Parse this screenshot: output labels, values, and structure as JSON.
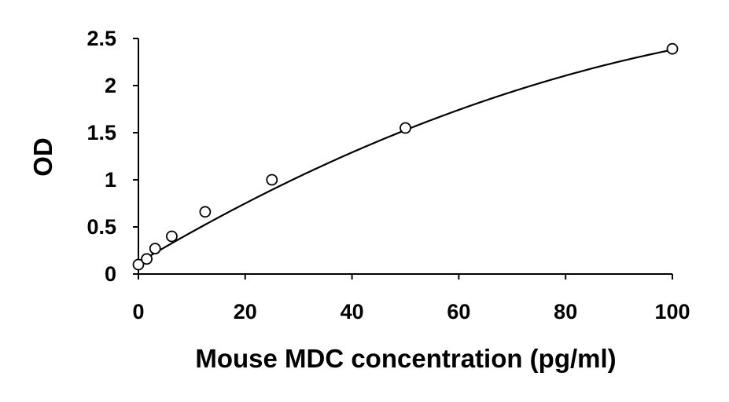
{
  "chart_data": {
    "type": "scatter",
    "title": "",
    "xlabel": "Mouse MDC concentration (pg/ml)",
    "ylabel": "OD",
    "xlim": [
      0,
      100
    ],
    "ylim": [
      0,
      2.5
    ],
    "xticks": [
      "0",
      "20",
      "40",
      "60",
      "80",
      "100"
    ],
    "yticks": [
      "0",
      "0.5",
      "1",
      "1.5",
      "2",
      "2.5"
    ],
    "grid": false,
    "legend": "none",
    "series": [
      {
        "marker": "open-circle",
        "x": [
          0,
          1.56,
          3.13,
          6.25,
          12.5,
          25,
          50,
          100
        ],
        "y": [
          0.1,
          0.16,
          0.27,
          0.4,
          0.66,
          1.0,
          1.55,
          2.39
        ]
      }
    ],
    "fit_curve": {
      "type": "polynomial-2",
      "coefficients": [
        0.12,
        0.0337,
        -0.000111
      ]
    },
    "colors": {
      "marker_stroke": "#000000",
      "marker_fill": "#ffffff",
      "line": "#000000",
      "axis": "#000000"
    }
  }
}
